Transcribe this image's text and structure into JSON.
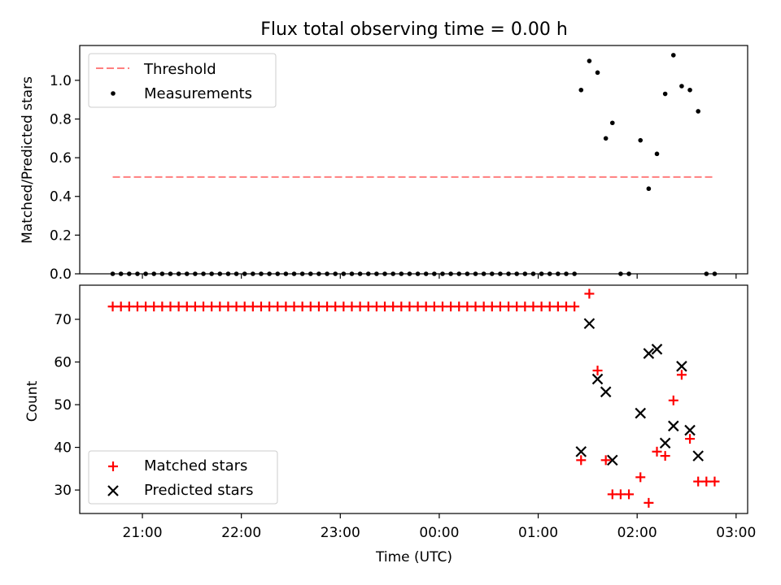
{
  "chart_data": [
    {
      "type": "scatter",
      "title": "Flux total observing time = 0.00 h",
      "ylabel": "Matched/Predicted stars",
      "xlabel": "",
      "ylim": [
        0,
        1.18
      ],
      "yticks": [
        0.0,
        0.2,
        0.4,
        0.6,
        0.8,
        1.0
      ],
      "ytick_labels": [
        "0.0",
        "0.2",
        "0.4",
        "0.6",
        "0.8",
        "1.0"
      ],
      "legend_position": "top-left",
      "series": [
        {
          "name": "Threshold",
          "style": "dashed-line",
          "color": "#ff7f7f",
          "x": [
            "20:42",
            "02:47"
          ],
          "y": [
            0.5,
            0.5
          ]
        },
        {
          "name": "Measurements",
          "style": "dot",
          "color": "#000000",
          "points": [
            [
              "20:42",
              0.0
            ],
            [
              "20:47",
              0.0
            ],
            [
              "20:52",
              0.0
            ],
            [
              "20:57",
              0.0
            ],
            [
              "21:02",
              0.0
            ],
            [
              "21:07",
              0.0
            ],
            [
              "21:12",
              0.0
            ],
            [
              "21:17",
              0.0
            ],
            [
              "21:22",
              0.0
            ],
            [
              "21:27",
              0.0
            ],
            [
              "21:32",
              0.0
            ],
            [
              "21:37",
              0.0
            ],
            [
              "21:42",
              0.0
            ],
            [
              "21:47",
              0.0
            ],
            [
              "21:52",
              0.0
            ],
            [
              "21:57",
              0.0
            ],
            [
              "22:02",
              0.0
            ],
            [
              "22:07",
              0.0
            ],
            [
              "22:12",
              0.0
            ],
            [
              "22:17",
              0.0
            ],
            [
              "22:22",
              0.0
            ],
            [
              "22:27",
              0.0
            ],
            [
              "22:32",
              0.0
            ],
            [
              "22:37",
              0.0
            ],
            [
              "22:42",
              0.0
            ],
            [
              "22:47",
              0.0
            ],
            [
              "22:52",
              0.0
            ],
            [
              "22:57",
              0.0
            ],
            [
              "23:02",
              0.0
            ],
            [
              "23:07",
              0.0
            ],
            [
              "23:12",
              0.0
            ],
            [
              "23:17",
              0.0
            ],
            [
              "23:22",
              0.0
            ],
            [
              "23:27",
              0.0
            ],
            [
              "23:32",
              0.0
            ],
            [
              "23:37",
              0.0
            ],
            [
              "23:42",
              0.0
            ],
            [
              "23:47",
              0.0
            ],
            [
              "23:52",
              0.0
            ],
            [
              "23:57",
              0.0
            ],
            [
              "00:02",
              0.0
            ],
            [
              "00:07",
              0.0
            ],
            [
              "00:12",
              0.0
            ],
            [
              "00:17",
              0.0
            ],
            [
              "00:22",
              0.0
            ],
            [
              "00:27",
              0.0
            ],
            [
              "00:32",
              0.0
            ],
            [
              "00:37",
              0.0
            ],
            [
              "00:42",
              0.0
            ],
            [
              "00:47",
              0.0
            ],
            [
              "00:52",
              0.0
            ],
            [
              "00:57",
              0.0
            ],
            [
              "01:02",
              0.0
            ],
            [
              "01:07",
              0.0
            ],
            [
              "01:12",
              0.0
            ],
            [
              "01:17",
              0.0
            ],
            [
              "01:22",
              0.0
            ],
            [
              "01:26",
              0.95
            ],
            [
              "01:31",
              1.1
            ],
            [
              "01:36",
              1.04
            ],
            [
              "01:41",
              0.7
            ],
            [
              "01:45",
              0.78
            ],
            [
              "01:50",
              0.0
            ],
            [
              "01:55",
              0.0
            ],
            [
              "02:02",
              0.69
            ],
            [
              "02:07",
              0.44
            ],
            [
              "02:12",
              0.62
            ],
            [
              "02:17",
              0.93
            ],
            [
              "02:22",
              1.13
            ],
            [
              "02:27",
              0.97
            ],
            [
              "02:32",
              0.95
            ],
            [
              "02:37",
              0.84
            ],
            [
              "02:42",
              0.0
            ],
            [
              "02:47",
              0.0
            ]
          ]
        }
      ]
    },
    {
      "type": "scatter",
      "title": "",
      "xlabel": "Time (UTC)",
      "ylabel": "Count",
      "ylim": [
        24.5,
        78
      ],
      "yticks": [
        30,
        40,
        50,
        60,
        70
      ],
      "ytick_labels": [
        "30",
        "40",
        "50",
        "60",
        "70"
      ],
      "xlim": [
        "20:22",
        "03:07"
      ],
      "xticks": [
        "21:00",
        "22:00",
        "23:00",
        "00:00",
        "01:00",
        "02:00",
        "03:00"
      ],
      "legend_position": "bottom-left",
      "series": [
        {
          "name": "Matched stars",
          "style": "plus",
          "color": "#ff0000",
          "points": [
            [
              "20:42",
              73
            ],
            [
              "20:47",
              73
            ],
            [
              "20:52",
              73
            ],
            [
              "20:57",
              73
            ],
            [
              "21:02",
              73
            ],
            [
              "21:07",
              73
            ],
            [
              "21:12",
              73
            ],
            [
              "21:17",
              73
            ],
            [
              "21:22",
              73
            ],
            [
              "21:27",
              73
            ],
            [
              "21:32",
              73
            ],
            [
              "21:37",
              73
            ],
            [
              "21:42",
              73
            ],
            [
              "21:47",
              73
            ],
            [
              "21:52",
              73
            ],
            [
              "21:57",
              73
            ],
            [
              "22:02",
              73
            ],
            [
              "22:07",
              73
            ],
            [
              "22:12",
              73
            ],
            [
              "22:17",
              73
            ],
            [
              "22:22",
              73
            ],
            [
              "22:27",
              73
            ],
            [
              "22:32",
              73
            ],
            [
              "22:37",
              73
            ],
            [
              "22:42",
              73
            ],
            [
              "22:47",
              73
            ],
            [
              "22:52",
              73
            ],
            [
              "22:57",
              73
            ],
            [
              "23:02",
              73
            ],
            [
              "23:07",
              73
            ],
            [
              "23:12",
              73
            ],
            [
              "23:17",
              73
            ],
            [
              "23:22",
              73
            ],
            [
              "23:27",
              73
            ],
            [
              "23:32",
              73
            ],
            [
              "23:37",
              73
            ],
            [
              "23:42",
              73
            ],
            [
              "23:47",
              73
            ],
            [
              "23:52",
              73
            ],
            [
              "23:57",
              73
            ],
            [
              "00:02",
              73
            ],
            [
              "00:07",
              73
            ],
            [
              "00:12",
              73
            ],
            [
              "00:17",
              73
            ],
            [
              "00:22",
              73
            ],
            [
              "00:27",
              73
            ],
            [
              "00:32",
              73
            ],
            [
              "00:37",
              73
            ],
            [
              "00:42",
              73
            ],
            [
              "00:47",
              73
            ],
            [
              "00:52",
              73
            ],
            [
              "00:57",
              73
            ],
            [
              "01:02",
              73
            ],
            [
              "01:07",
              73
            ],
            [
              "01:12",
              73
            ],
            [
              "01:17",
              73
            ],
            [
              "01:22",
              73
            ],
            [
              "01:26",
              37
            ],
            [
              "01:31",
              76
            ],
            [
              "01:36",
              58
            ],
            [
              "01:41",
              37
            ],
            [
              "01:45",
              29
            ],
            [
              "01:50",
              29
            ],
            [
              "01:55",
              29
            ],
            [
              "02:02",
              33
            ],
            [
              "02:07",
              27
            ],
            [
              "02:12",
              39
            ],
            [
              "02:17",
              38
            ],
            [
              "02:22",
              51
            ],
            [
              "02:27",
              57
            ],
            [
              "02:32",
              42
            ],
            [
              "02:37",
              32
            ],
            [
              "02:42",
              32
            ],
            [
              "02:47",
              32
            ]
          ]
        },
        {
          "name": "Predicted stars",
          "style": "x",
          "color": "#000000",
          "points": [
            [
              "01:26",
              39
            ],
            [
              "01:31",
              69
            ],
            [
              "01:36",
              56
            ],
            [
              "01:41",
              53
            ],
            [
              "01:45",
              37
            ],
            [
              "02:02",
              48
            ],
            [
              "02:07",
              62
            ],
            [
              "02:12",
              63
            ],
            [
              "02:17",
              41
            ],
            [
              "02:22",
              45
            ],
            [
              "02:27",
              59
            ],
            [
              "02:32",
              44
            ],
            [
              "02:37",
              38
            ]
          ]
        }
      ]
    }
  ]
}
